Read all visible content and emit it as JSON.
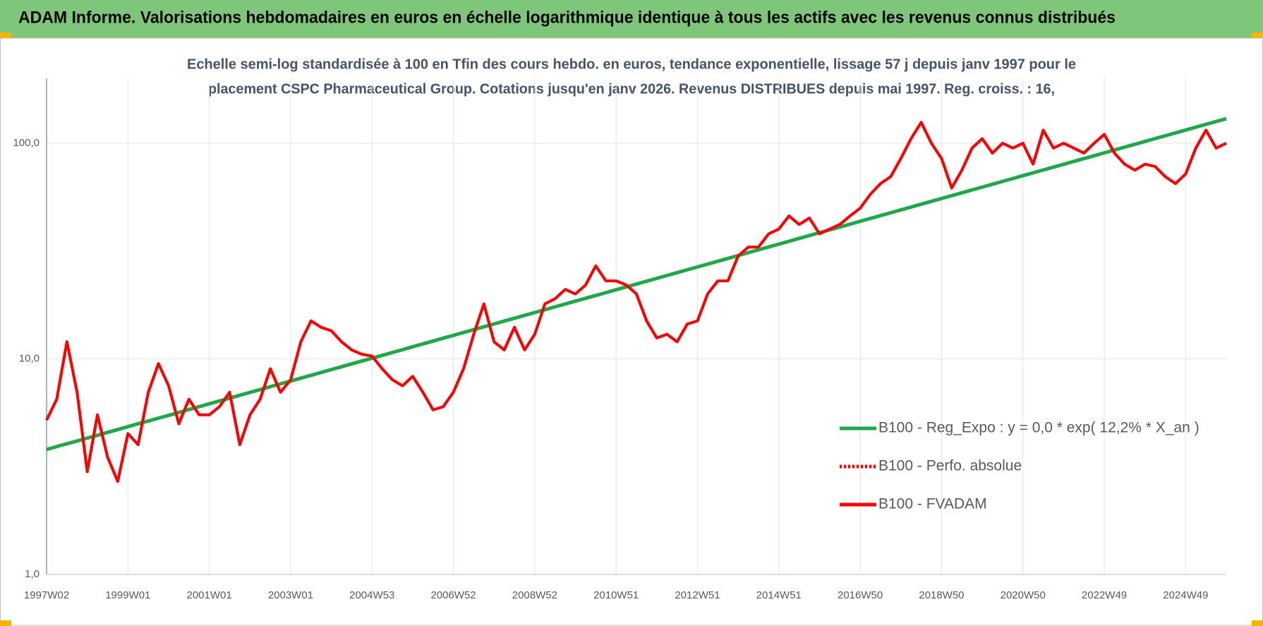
{
  "chart_data": {
    "type": "line",
    "title": "ADAM Informe. Valorisations hebdomadaires en euros en échelle logarithmique identique à tous les actifs avec les revenus connus distribués",
    "subtitle": [
      "Echelle semi-log standardisée à 100 en Tfin des cours hebdo. en euros, tendance exponentielle, lissage 57 j depuis janv 1997 pour le",
      "placement CSPC Pharmaceutical Group. Cotations jusqu'en janv 2026.  Revenus DISTRIBUES depuis mai 1997. Reg. croiss. : 16,"
    ],
    "categories": [
      "1997W02",
      null,
      null,
      null,
      null,
      null,
      null,
      null,
      "1999W01",
      null,
      null,
      null,
      null,
      null,
      null,
      null,
      "2001W01",
      null,
      null,
      null,
      null,
      null,
      null,
      null,
      "2003W01",
      null,
      null,
      null,
      null,
      null,
      null,
      null,
      "2004W53",
      null,
      null,
      null,
      null,
      null,
      null,
      null,
      "2006W52",
      null,
      null,
      null,
      null,
      null,
      null,
      null,
      "2008W52",
      null,
      null,
      null,
      null,
      null,
      null,
      null,
      "2010W51",
      null,
      null,
      null,
      null,
      null,
      null,
      null,
      "2012W51",
      null,
      null,
      null,
      null,
      null,
      null,
      null,
      "2014W51",
      null,
      null,
      null,
      null,
      null,
      null,
      null,
      "2016W50",
      null,
      null,
      null,
      null,
      null,
      null,
      null,
      "2018W50",
      null,
      null,
      null,
      null,
      null,
      null,
      null,
      "2020W50",
      null,
      null,
      null,
      null,
      null,
      null,
      null,
      "2022W49",
      null,
      null,
      null,
      null,
      null,
      null,
      null,
      "2024W49",
      null,
      null,
      null,
      null
    ],
    "series": [
      {
        "name": "B100 - Reg_Expo : y = 0,0 * exp( 12,2% *  X_an )",
        "color": "#1fa84a",
        "style": "solid",
        "values": [
          3.8,
          3.92,
          4.04,
          4.16,
          4.29,
          4.42,
          4.56,
          4.7,
          4.85,
          5.0,
          5.15,
          5.31,
          5.47,
          5.64,
          5.82,
          6.0,
          6.19,
          6.38,
          6.57,
          6.78,
          6.99,
          7.2,
          7.43,
          7.66,
          7.89,
          8.14,
          8.39,
          8.65,
          8.92,
          9.19,
          9.48,
          9.77,
          10.07,
          10.38,
          10.7,
          11.03,
          11.38,
          11.73,
          12.09,
          12.47,
          12.85,
          13.25,
          13.66,
          14.08,
          14.52,
          14.97,
          15.43,
          15.91,
          16.4,
          16.9,
          17.43,
          17.97,
          18.52,
          19.09,
          19.68,
          20.29,
          20.92,
          21.57,
          22.23,
          22.92,
          23.63,
          24.36,
          25.11,
          25.89,
          26.69,
          27.51,
          28.36,
          29.24,
          30.14,
          31.08,
          32.04,
          33.03,
          34.05,
          35.1,
          36.19,
          37.31,
          38.46,
          39.65,
          40.88,
          42.14,
          43.45,
          44.79,
          46.17,
          47.6,
          49.07,
          50.59,
          52.16,
          53.77,
          55.43,
          57.14,
          58.91,
          60.73,
          62.61,
          64.55,
          66.54,
          68.6,
          70.72,
          72.91,
          75.16,
          77.49,
          79.88,
          82.35,
          84.9,
          87.52,
          90.23,
          93.02,
          95.9,
          98.86,
          101.9,
          105.1,
          108.3,
          111.7,
          115.1,
          118.7,
          122.4,
          126.1,
          130.0
        ]
      },
      {
        "name": "B100 - Perfo. absolue",
        "color": "#ff0000",
        "style": "dotted",
        "values": [
          5.2,
          6.5,
          12,
          7,
          3,
          5.5,
          3.5,
          2.7,
          4.5,
          4,
          7,
          9.5,
          7.5,
          5,
          6.5,
          5.5,
          5.5,
          6,
          7,
          4,
          5.5,
          6.5,
          9,
          7,
          8,
          12,
          15,
          14,
          13.5,
          12,
          11,
          10.5,
          10.3,
          9,
          8,
          7.5,
          8.3,
          7,
          5.8,
          6,
          7,
          9,
          13,
          18,
          12,
          11,
          14,
          11,
          13,
          18,
          19,
          21,
          20,
          22,
          27,
          23,
          23,
          22,
          20,
          15,
          12.5,
          13,
          12,
          14.5,
          15,
          20,
          23,
          23,
          30,
          33,
          33,
          38,
          40,
          46,
          42,
          45,
          38,
          40,
          42,
          46,
          50,
          58,
          65,
          70,
          85,
          105,
          125,
          100,
          85,
          62,
          75,
          95,
          105,
          90,
          100,
          95,
          100,
          80,
          115,
          95,
          100,
          95,
          90,
          100,
          110,
          90,
          80,
          75,
          80,
          78,
          70,
          65,
          72,
          95,
          115,
          95,
          100
        ]
      },
      {
        "name": "B100 - FVADAM",
        "color": "#ff0000",
        "style": "solid",
        "values": [
          5.2,
          6.5,
          12,
          7,
          3,
          5.5,
          3.5,
          2.7,
          4.5,
          4,
          7,
          9.5,
          7.5,
          5,
          6.5,
          5.5,
          5.5,
          6,
          7,
          4,
          5.5,
          6.5,
          9,
          7,
          8,
          12,
          15,
          14,
          13.5,
          12,
          11,
          10.5,
          10.3,
          9,
          8,
          7.5,
          8.3,
          7,
          5.8,
          6,
          7,
          9,
          13,
          18,
          12,
          11,
          14,
          11,
          13,
          18,
          19,
          21,
          20,
          22,
          27,
          23,
          23,
          22,
          20,
          15,
          12.5,
          13,
          12,
          14.5,
          15,
          20,
          23,
          23,
          30,
          33,
          33,
          38,
          40,
          46,
          42,
          45,
          38,
          40,
          42,
          46,
          50,
          58,
          65,
          70,
          85,
          105,
          125,
          100,
          85,
          62,
          75,
          95,
          105,
          90,
          100,
          95,
          100,
          80,
          115,
          95,
          100,
          95,
          90,
          100,
          110,
          90,
          80,
          75,
          80,
          78,
          70,
          65,
          72,
          95,
          115,
          95,
          100
        ]
      }
    ],
    "ylim": [
      1,
      200
    ],
    "ylog": true,
    "yticks": [
      {
        "value": 1,
        "label": "1,0"
      },
      {
        "value": 10,
        "label": "10,0"
      },
      {
        "value": 100,
        "label": "100,0"
      }
    ],
    "grid": true,
    "legend": "lower right"
  }
}
